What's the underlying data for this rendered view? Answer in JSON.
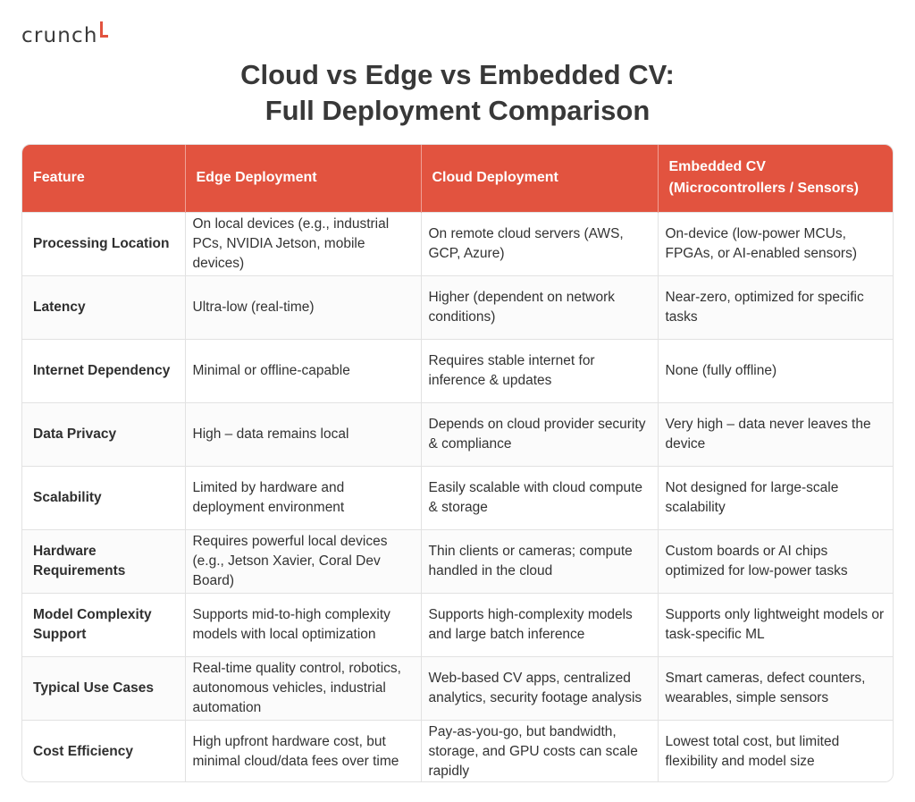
{
  "brand": {
    "name": "crunch",
    "accent": "#e2533f"
  },
  "title": {
    "line1": "Cloud vs Edge vs Embedded CV:",
    "line2": "Full Deployment Comparison"
  },
  "table": {
    "header_color": "#e2533f",
    "columns": [
      "Feature",
      "Edge Deployment",
      "Cloud Deployment",
      "Embedded CV\n(Microcontrollers / Sensors)"
    ],
    "rows": [
      [
        "Processing Location",
        "On local devices (e.g., industrial PCs, NVIDIA Jetson, mobile devices)",
        "On remote cloud servers (AWS, GCP, Azure)",
        "On-device (low-power MCUs, FPGAs, or AI-enabled sensors)"
      ],
      [
        "Latency",
        "Ultra-low (real-time)",
        "Higher (dependent on network conditions)",
        "Near-zero, optimized for specific tasks"
      ],
      [
        "Internet Dependency",
        "Minimal or offline-capable",
        "Requires stable internet for inference & updates",
        "None (fully offline)"
      ],
      [
        "Data Privacy",
        "High – data remains local",
        "Depends on cloud provider security & compliance",
        "Very high – data never leaves the device"
      ],
      [
        "Scalability",
        "Limited by hardware and deployment environment",
        "Easily scalable with cloud compute & storage",
        "Not designed for large-scale scalability"
      ],
      [
        "Hardware Requirements",
        "Requires powerful local devices (e.g., Jetson Xavier, Coral Dev Board)",
        "Thin clients or cameras; compute handled in the cloud",
        "Custom boards or AI chips optimized for low-power tasks"
      ],
      [
        "Model Complexity Support",
        "Supports mid-to-high complexity models with local optimization",
        "Supports high-complexity models and large batch inference",
        "Supports only lightweight models or task-specific ML"
      ],
      [
        "Typical Use Cases",
        "Real-time quality control, robotics, autonomous vehicles, industrial automation",
        "Web-based CV apps, centralized analytics, security footage analysis",
        "Smart cameras, defect counters, wearables, simple sensors"
      ],
      [
        "Cost Efficiency",
        "High upfront hardware cost, but minimal cloud/data fees over time",
        "Pay-as-you-go, but bandwidth, storage, and GPU costs can scale rapidly",
        "Lowest total cost, but limited flexibility and model size"
      ]
    ]
  }
}
